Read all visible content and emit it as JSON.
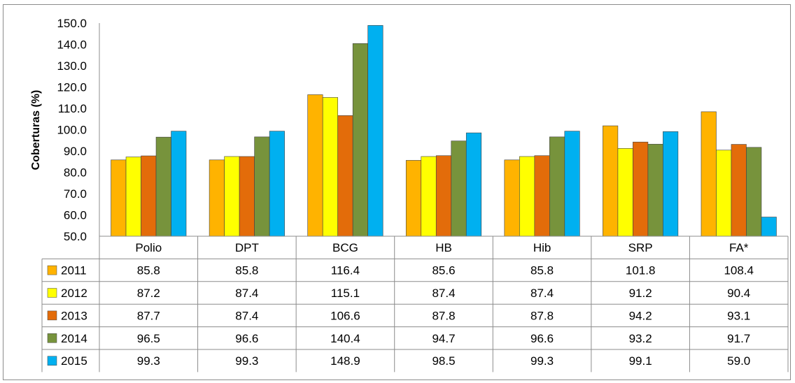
{
  "chart_data": {
    "type": "bar",
    "ylabel": "Coberturas (%)",
    "ylim": [
      50,
      150
    ],
    "yticks": [
      "50.0",
      "60.0",
      "70.0",
      "80.0",
      "90.0",
      "100.0",
      "110.0",
      "120.0",
      "130.0",
      "140.0",
      "150.0"
    ],
    "categories": [
      "Polio",
      "DPT",
      "BCG",
      "HB",
      "Hib",
      "SRP",
      "FA*"
    ],
    "series": [
      {
        "name": "2011",
        "color": "#ffb300",
        "values": [
          85.8,
          85.8,
          116.4,
          85.6,
          85.8,
          101.8,
          108.4
        ],
        "labels": [
          "85.8",
          "85.8",
          "116.4",
          "85.6",
          "85.8",
          "101.8",
          "108.4"
        ]
      },
      {
        "name": "2012",
        "color": "#ffff00",
        "values": [
          87.2,
          87.4,
          115.1,
          87.4,
          87.4,
          91.2,
          90.4
        ],
        "labels": [
          "87.2",
          "87.4",
          "115.1",
          "87.4",
          "87.4",
          "91.2",
          "90.4"
        ]
      },
      {
        "name": "2013",
        "color": "#e36c0a",
        "values": [
          87.7,
          87.4,
          106.6,
          87.8,
          87.8,
          94.2,
          93.1
        ],
        "labels": [
          "87.7",
          "87.4",
          "106.6",
          "87.8",
          "87.8",
          "94.2",
          "93.1"
        ]
      },
      {
        "name": "2014",
        "color": "#77933c",
        "values": [
          96.5,
          96.6,
          140.4,
          94.7,
          96.6,
          93.2,
          91.7
        ],
        "labels": [
          "96.5",
          "96.6",
          "140.4",
          "94.7",
          "96.6",
          "93.2",
          "91.7"
        ]
      },
      {
        "name": "2015",
        "color": "#00b0f0",
        "values": [
          99.3,
          99.3,
          148.9,
          98.5,
          99.3,
          99.1,
          59.0
        ],
        "labels": [
          "99.3",
          "99.3",
          "148.9",
          "98.5",
          "99.3",
          "99.1",
          "59.0"
        ]
      }
    ],
    "data_table": true,
    "grid": false
  }
}
